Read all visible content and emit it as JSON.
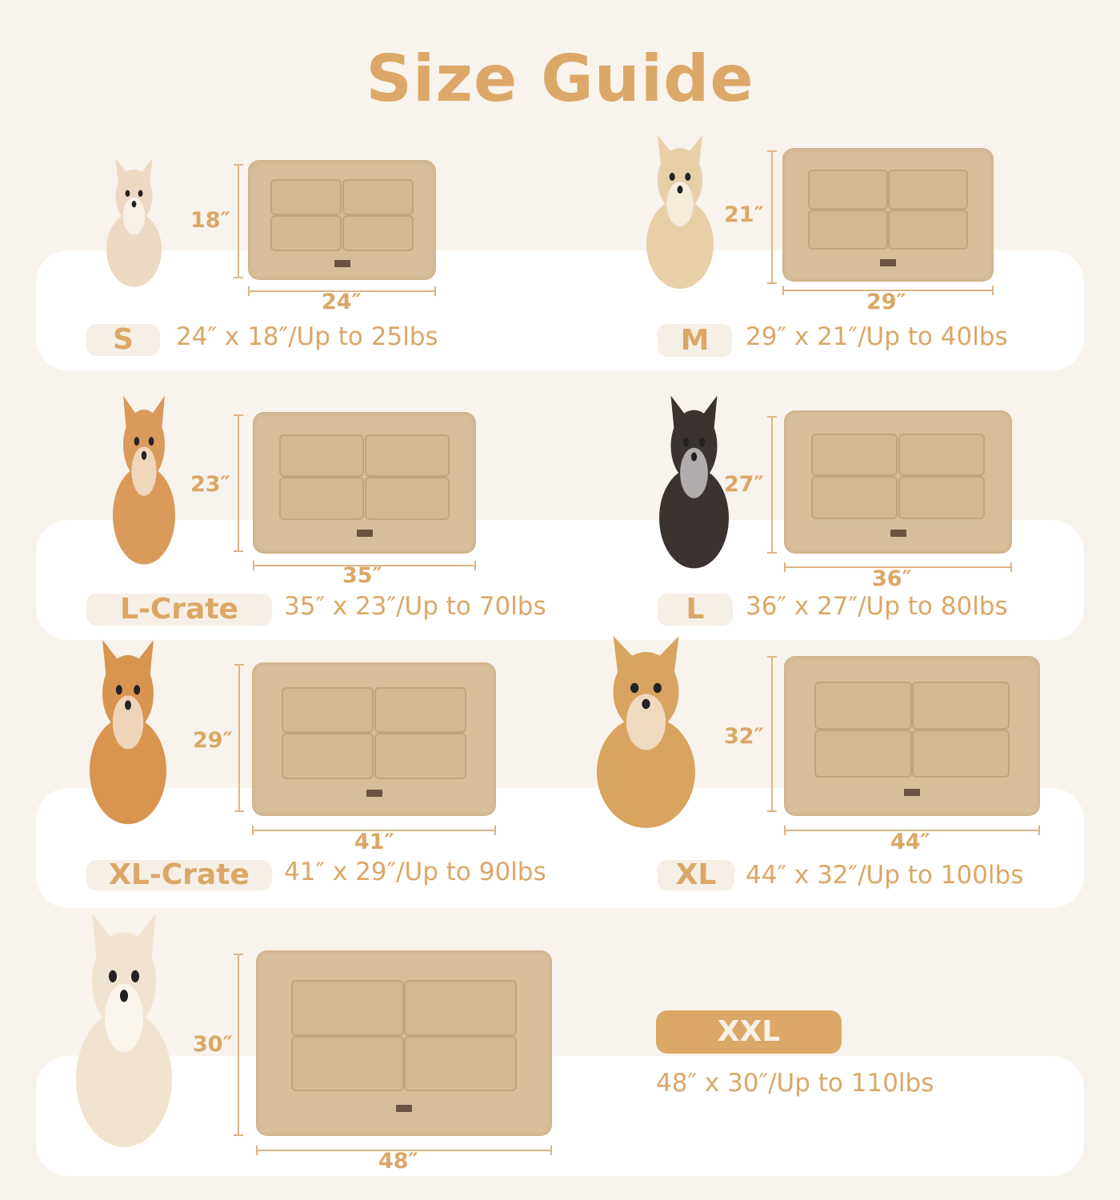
{
  "title": "Size Guide",
  "colors": {
    "accent": "#dca868",
    "background": "#f8f3ec",
    "mat": "#d7bd99"
  },
  "sizes": [
    {
      "label": "S",
      "height": "18″",
      "width": "24″",
      "description": "24″ x 18″/Up to 25lbs",
      "dog": "chihuahua puppy"
    },
    {
      "label": "M",
      "height": "21″",
      "width": "29″",
      "description": "29″ x 21″/Up to 40lbs",
      "dog": "fluffy small dog"
    },
    {
      "label": "L-Crate",
      "height": "23″",
      "width": "35″",
      "description": "35″ x 23″/Up to 70lbs",
      "dog": "corgi"
    },
    {
      "label": "L",
      "height": "27″",
      "width": "36″",
      "description": "36″ x 27″/Up to 80lbs",
      "dog": "border collie"
    },
    {
      "label": "XL-Crate",
      "height": "29″",
      "width": "41″",
      "description": "41″ x 29″/Up to 90lbs",
      "dog": "shiba inu"
    },
    {
      "label": "XL",
      "height": "32″",
      "width": "44″",
      "description": "44″ x 32″/Up to 100lbs",
      "dog": "golden retriever"
    },
    {
      "label": "XXL",
      "height": "30″",
      "width": "48″",
      "description": "48″ x 30″/Up to 110lbs",
      "dog": "white golden retriever"
    }
  ]
}
